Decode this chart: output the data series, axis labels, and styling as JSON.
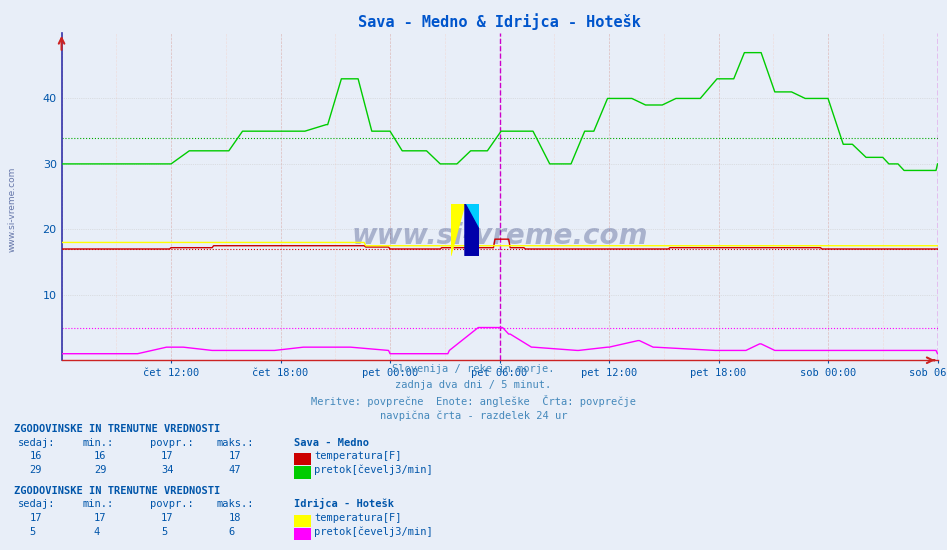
{
  "title": "Sava - Medno & Idrijca - Hotešk",
  "title_color": "#0055cc",
  "bg_color": "#e8eef8",
  "plot_bg_color": "#e8eef8",
  "xlim": [
    0,
    576
  ],
  "ylim": [
    0,
    50
  ],
  "yticks": [
    10,
    20,
    30,
    40
  ],
  "xlabel_color": "#0055aa",
  "ylabel_color": "#0055aa",
  "x_tick_labels": [
    "čet 12:00",
    "čet 18:00",
    "pet 00:00",
    "pet 06:00",
    "pet 12:00",
    "pet 18:00",
    "sob 00:00",
    "sob 06:00"
  ],
  "x_tick_positions": [
    72,
    144,
    216,
    288,
    360,
    432,
    504,
    576
  ],
  "vline_positions": [
    288,
    576
  ],
  "vline_color": "#cc00cc",
  "subtitle_lines": [
    "Slovenija / reke in morje.",
    "zadnja dva dni / 5 minut.",
    "Meritve: povprečne  Enote: angleške  Črta: povprečje",
    "navpična črta - razdelek 24 ur"
  ],
  "subtitle_color": "#4488bb",
  "watermark": "www.si-vreme.com",
  "sava_temp_color": "#cc0000",
  "sava_pretok_color": "#00cc00",
  "idrijca_temp_color": "#ffff00",
  "idrijca_pretok_color": "#ff00ff",
  "dotted_red": "#cc0000",
  "dotted_green": "#00aa00",
  "dotted_magenta": "#ff00ff",
  "table_text_color": "#0055aa",
  "n_points": 577,
  "sava_temp_avg": 17,
  "sava_temp_min": 16,
  "sava_temp_max": 17,
  "sava_temp_current": 16,
  "sava_pretok_avg": 34,
  "sava_pretok_min": 29,
  "sava_pretok_max": 47,
  "sava_pretok_current": 29,
  "idrijca_temp_avg": 17,
  "idrijca_temp_min": 17,
  "idrijca_temp_max": 18,
  "idrijca_temp_current": 17,
  "idrijca_pretok_avg": 5,
  "idrijca_pretok_min": 4,
  "idrijca_pretok_max": 6,
  "idrijca_pretok_current": 5
}
